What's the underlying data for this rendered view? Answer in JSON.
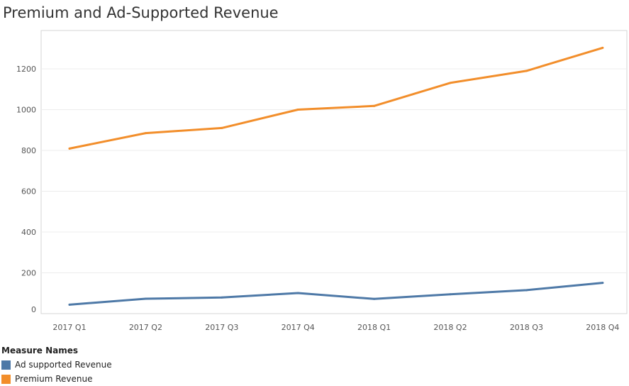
{
  "chart_data": {
    "type": "line",
    "title": "Premium and Ad-Supported Revenue",
    "xlabel": "",
    "ylabel": "",
    "categories": [
      "2017 Q1",
      "2017 Q2",
      "2017 Q3",
      "2017 Q4",
      "2018 Q1",
      "2018 Q2",
      "2018 Q3",
      "2018 Q4"
    ],
    "ylim": [
      0,
      1340
    ],
    "yticks": [
      0,
      200,
      400,
      600,
      800,
      1000,
      1200
    ],
    "grid": true,
    "series": [
      {
        "name": "Ad supported Revenue",
        "color": "#4e79a7",
        "values": [
          44,
          73,
          79,
          101,
          72,
          95,
          115,
          151
        ]
      },
      {
        "name": "Premium Revenue",
        "color": "#f28e2b",
        "values": [
          809,
          885,
          910,
          1000,
          1018,
          1131,
          1190,
          1303
        ]
      }
    ],
    "legend": {
      "title": "Measure Names",
      "placement": "bottom-left"
    }
  }
}
